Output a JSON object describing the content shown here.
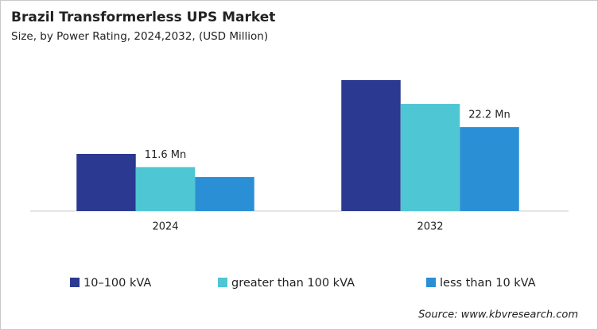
{
  "chart_data": {
    "type": "bar",
    "title": "Brazil Transformerless  UPS Market",
    "subtitle": "Size, by Power Rating, 2024,2032, (USD Million)",
    "categories": [
      "2024",
      "2032"
    ],
    "series": [
      {
        "name": "10–100 kVA",
        "color": "#2b3990",
        "values": [
          15.1,
          34.6
        ]
      },
      {
        "name": "greater than 100 kVA",
        "color": "#4ec6d3",
        "values": [
          11.6,
          28.3
        ],
        "value_labels": [
          "11.6 Mn",
          null
        ]
      },
      {
        "name": "less than 10 kVA",
        "color": "#2b8fd6",
        "values": [
          9.0,
          22.2
        ],
        "value_labels": [
          null,
          "22.2 Mn"
        ]
      }
    ],
    "source": "Source: www.kbvresearch.com"
  }
}
